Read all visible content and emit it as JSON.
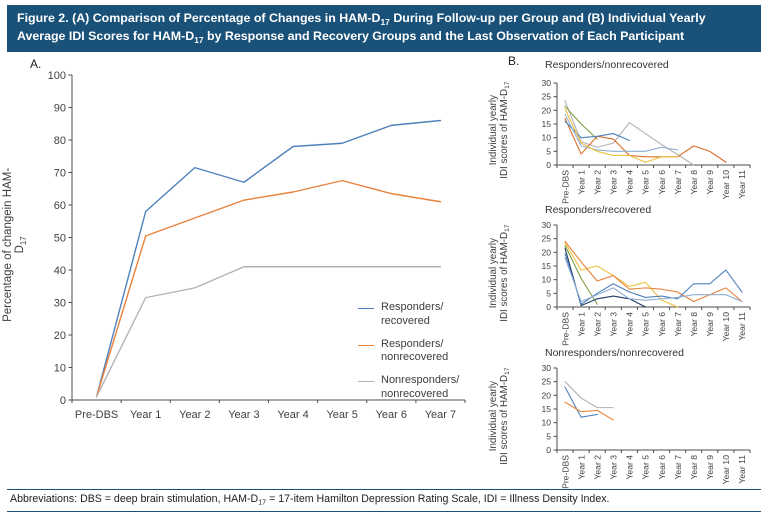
{
  "figure": {
    "title_parts": [
      "Figure 2. (A) Comparison of Percentage of Changes in HAM-D",
      "17",
      " During Follow-up per Group and (B) Individual Yearly Average IDI Scores for HAM-D",
      "17",
      " by Response and Recovery Groups and the Last Observation of Each Participant"
    ],
    "panel_a_label": "A.",
    "panel_b_label": "B.",
    "abbrev_parts": [
      "Abbreviations: DBS = deep brain stimulation, HAM-D",
      "17",
      " = 17-item Hamilton Depression Rating Scale, IDI = Illness Density Index."
    ],
    "colors": {
      "header_bg": "#1a5178",
      "rule": "#1a5178"
    }
  },
  "panel_a": {
    "ylabel_parts": [
      "Percentage of changein HAM-D",
      "17"
    ],
    "legend": [
      {
        "line1": "Responders/",
        "line2": "recovered",
        "color": "#4f81bd"
      },
      {
        "line1": "Responders/",
        "line2": "nonrecovered",
        "color": "#e8823c"
      },
      {
        "line1": "Nonresponders/",
        "line2": "nonrecovered",
        "color": "#b3b3b3"
      }
    ]
  },
  "panel_b": {
    "ylabel_line1": "Individual yearly",
    "ylabel_line2_parts": [
      "IDI scores of HAM-D",
      "17"
    ]
  },
  "chart_data": [
    {
      "type": "line",
      "title": "",
      "xlabel": "",
      "ylabel": "Percentage of changein HAM-D17",
      "categories": [
        "Pre-DBS",
        "Year 1",
        "Year 2",
        "Year 3",
        "Year 4",
        "Year 5",
        "Year 6",
        "Year 7"
      ],
      "ylim": [
        0,
        100
      ],
      "ytick": 10,
      "grid": false,
      "legend_position": "inside lower right",
      "series": [
        {
          "name": "Responders/recovered",
          "color": "#4f81bd",
          "values": [
            1,
            58,
            71.5,
            67,
            78,
            79,
            84.5,
            86
          ]
        },
        {
          "name": "Responders/nonrecovered",
          "color": "#e8823c",
          "values": [
            1,
            50.5,
            56,
            61.5,
            64,
            67.5,
            63.5,
            61
          ]
        },
        {
          "name": "Nonresponders/nonrecovered",
          "color": "#b3b3b3",
          "values": [
            1,
            31.5,
            34.5,
            41,
            41,
            41,
            41,
            41
          ]
        }
      ]
    },
    {
      "type": "line",
      "title": "Responders/nonrecovered",
      "ylabel": "Individual yearly IDI scores of HAM-D17",
      "categories": [
        "Pre-DBS",
        "Year 1",
        "Year 2",
        "Year 3",
        "Year 4",
        "Year 5",
        "Year 6",
        "Year 7",
        "Year 8",
        "Year 9",
        "Year 10",
        "Year 11"
      ],
      "ylim": [
        0,
        30
      ],
      "ytick": 5,
      "grid": false,
      "series": [
        {
          "name": "participant-gray",
          "color": "#b3b3b3",
          "values": [
            23.5,
            8.5,
            6.5,
            8,
            15.5,
            11.5,
            7.5,
            3.8,
            0,
            null,
            null,
            null
          ]
        },
        {
          "name": "participant-green",
          "color": "#7f9f44",
          "values": [
            21.5,
            15,
            9.5,
            null,
            null,
            null,
            null,
            null,
            null,
            null,
            null,
            null
          ]
        },
        {
          "name": "participant-orange",
          "color": "#d96d2a",
          "values": [
            17,
            4,
            10.5,
            9.5,
            3.5,
            3,
            3,
            3,
            7,
            5,
            1,
            null
          ]
        },
        {
          "name": "participant-blue",
          "color": "#4f81bd",
          "values": [
            16,
            10,
            10.5,
            11.5,
            9,
            null,
            null,
            null,
            null,
            null,
            null,
            null
          ]
        },
        {
          "name": "participant-lightblue",
          "color": "#8fafd4",
          "values": [
            18.5,
            7,
            5.5,
            5,
            5,
            5,
            6.5,
            5.5,
            null,
            null,
            null,
            null
          ]
        },
        {
          "name": "participant-yellow",
          "color": "#eec13f",
          "values": [
            20.5,
            8,
            5,
            3.5,
            3.5,
            1,
            3,
            3,
            null,
            null,
            null,
            null
          ]
        }
      ]
    },
    {
      "type": "line",
      "title": "Responders/recovered",
      "ylabel": "Individual yearly IDI scores of HAM-D17",
      "categories": [
        "Pre-DBS",
        "Year 1",
        "Year 2",
        "Year 3",
        "Year 4",
        "Year 5",
        "Year 6",
        "Year 7",
        "Year 8",
        "Year 9",
        "Year 10",
        "Year 11"
      ],
      "ylim": [
        0,
        30
      ],
      "ytick": 5,
      "grid": false,
      "series": [
        {
          "name": "participant-yellow",
          "color": "#eec13f",
          "values": [
            23.5,
            13.5,
            15,
            11.5,
            7.5,
            9,
            2.5,
            0,
            null,
            null,
            null,
            null
          ]
        },
        {
          "name": "participant-orange",
          "color": "#e8823c",
          "values": [
            24,
            16.5,
            9.5,
            11.5,
            6.5,
            7,
            6.5,
            5.5,
            2,
            4.5,
            7,
            2
          ]
        },
        {
          "name": "participant-green",
          "color": "#7f9f44",
          "values": [
            22.5,
            10.5,
            1,
            null,
            null,
            null,
            null,
            null,
            null,
            null,
            null,
            null
          ]
        },
        {
          "name": "participant-navy",
          "color": "#1f3b63",
          "values": [
            21.5,
            0.5,
            3,
            4,
            3,
            0,
            null,
            null,
            null,
            null,
            null,
            null
          ]
        },
        {
          "name": "participant-blue",
          "color": "#4f81bd",
          "values": [
            19.5,
            1,
            5,
            8.5,
            5.5,
            3.5,
            4,
            3,
            8.5,
            8.5,
            13.5,
            5.5
          ]
        },
        {
          "name": "participant-lightblue",
          "color": "#8fafd4",
          "values": [
            18,
            2,
            4.5,
            7,
            3,
            2.5,
            3,
            3.5,
            4.5,
            4.5,
            4.5,
            2
          ]
        }
      ]
    },
    {
      "type": "line",
      "title": "Nonresponders/nonrecovered",
      "ylabel": "Individual yearly IDI scores of HAM-D17",
      "categories": [
        "Pre-DBS",
        "Year 1",
        "Year 2",
        "Year 3",
        "Year 4",
        "Year 5",
        "Year 6",
        "Year 7",
        "Year 8",
        "Year 9",
        "Year 10",
        "Year 11"
      ],
      "ylim": [
        0,
        30
      ],
      "ytick": 5,
      "grid": false,
      "series": [
        {
          "name": "participant-gray",
          "color": "#b3b3b3",
          "values": [
            25,
            19,
            15.5,
            15.5,
            null,
            null,
            null,
            null,
            null,
            null,
            null,
            null
          ]
        },
        {
          "name": "participant-blue",
          "color": "#4f81bd",
          "values": [
            23,
            12,
            13,
            null,
            null,
            null,
            null,
            null,
            null,
            null,
            null,
            null
          ]
        },
        {
          "name": "participant-orange",
          "color": "#e8823c",
          "values": [
            17.5,
            14,
            14.5,
            11,
            null,
            null,
            null,
            null,
            null,
            null,
            null,
            null
          ]
        }
      ]
    }
  ]
}
